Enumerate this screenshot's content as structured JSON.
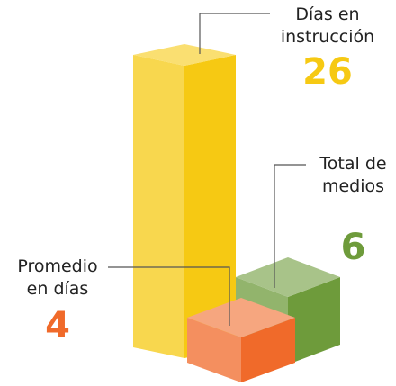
{
  "chart_data": {
    "type": "bar3d",
    "categories": [
      "Días en instrucción",
      "Total de medios",
      "Promedio en días"
    ],
    "values": [
      26,
      6,
      4
    ],
    "colors": [
      "#f6c913",
      "#6e9b3b",
      "#f06a2a"
    ]
  }
}
